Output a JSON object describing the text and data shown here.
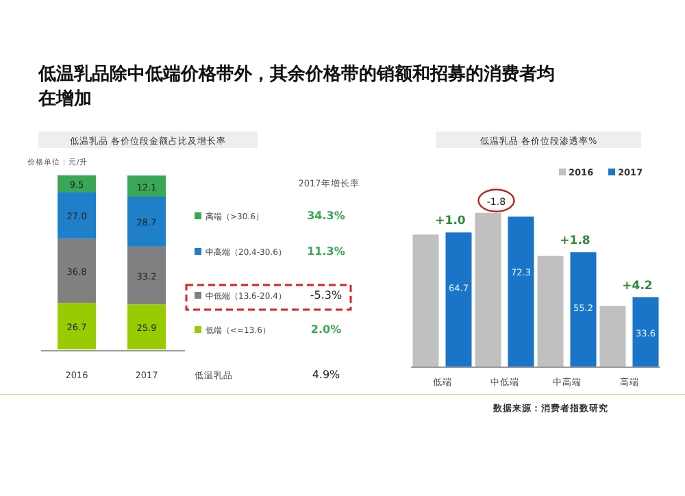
{
  "chart_data": [
    {
      "type": "bar",
      "stacked": true,
      "legend": "right",
      "title": "低温乳品除中低端价格带外，其余价格带的销额和招募的消费者均在增加",
      "subtitle": "低温乳品 各价位段金额占比及增长率",
      "categories": [
        "2016",
        "2017"
      ],
      "series": [
        {
          "name": "低端（<=13.6）",
          "color": "#99cc00",
          "values": [
            26.7,
            25.9
          ],
          "value_labels": [
            "26.7",
            "25.9"
          ]
        },
        {
          "name": "中低端（13.6-20.4）",
          "color": "#808080",
          "values": [
            36.8,
            33.2
          ],
          "value_labels": [
            "36.8",
            "33.2"
          ]
        },
        {
          "name": "中高端（20.4-30.6）",
          "color": "#1f7fc8",
          "values": [
            27.0,
            28.7
          ],
          "value_labels": [
            "27.0",
            "28.7"
          ]
        },
        {
          "name": "高端（>30.6）",
          "color": "#3aa757",
          "values": [
            9.5,
            12.1
          ],
          "value_labels": [
            "9.5",
            "12.1"
          ]
        }
      ],
      "annotations": [
        "价格单位：元/升",
        "2017年增长率",
        "2.0%",
        "-5.3%",
        "11.3%",
        "34.3%",
        "低温乳品",
        "4.9%"
      ]
    },
    {
      "type": "bar",
      "legend": "top right",
      "title": "低温乳品 各价位段渗透率%",
      "categories": [
        "低端",
        "中低端",
        "中高端",
        "高端"
      ],
      "series": [
        {
          "name": "2016",
          "color": "#c0c0c0",
          "values": [
            63.7,
            74.1,
            53.4,
            29.4
          ]
        },
        {
          "name": "2017",
          "color": "#1a75c9",
          "values": [
            64.7,
            72.3,
            55.2,
            33.6
          ],
          "value_labels": [
            "64.7",
            "72.3",
            "55.2",
            "33.6"
          ]
        }
      ],
      "annotations": [
        {
          "text": "+1.0",
          "x": "低端",
          "y": 64.7
        },
        {
          "text": "-1.8",
          "x": "中低端",
          "y": 74.1
        },
        {
          "text": "+1.8",
          "x": "中高端",
          "y": 55.2
        },
        {
          "text": "+4.2",
          "x": "高端",
          "y": 33.6
        },
        "数据来源：消费者指数研究"
      ]
    }
  ]
}
